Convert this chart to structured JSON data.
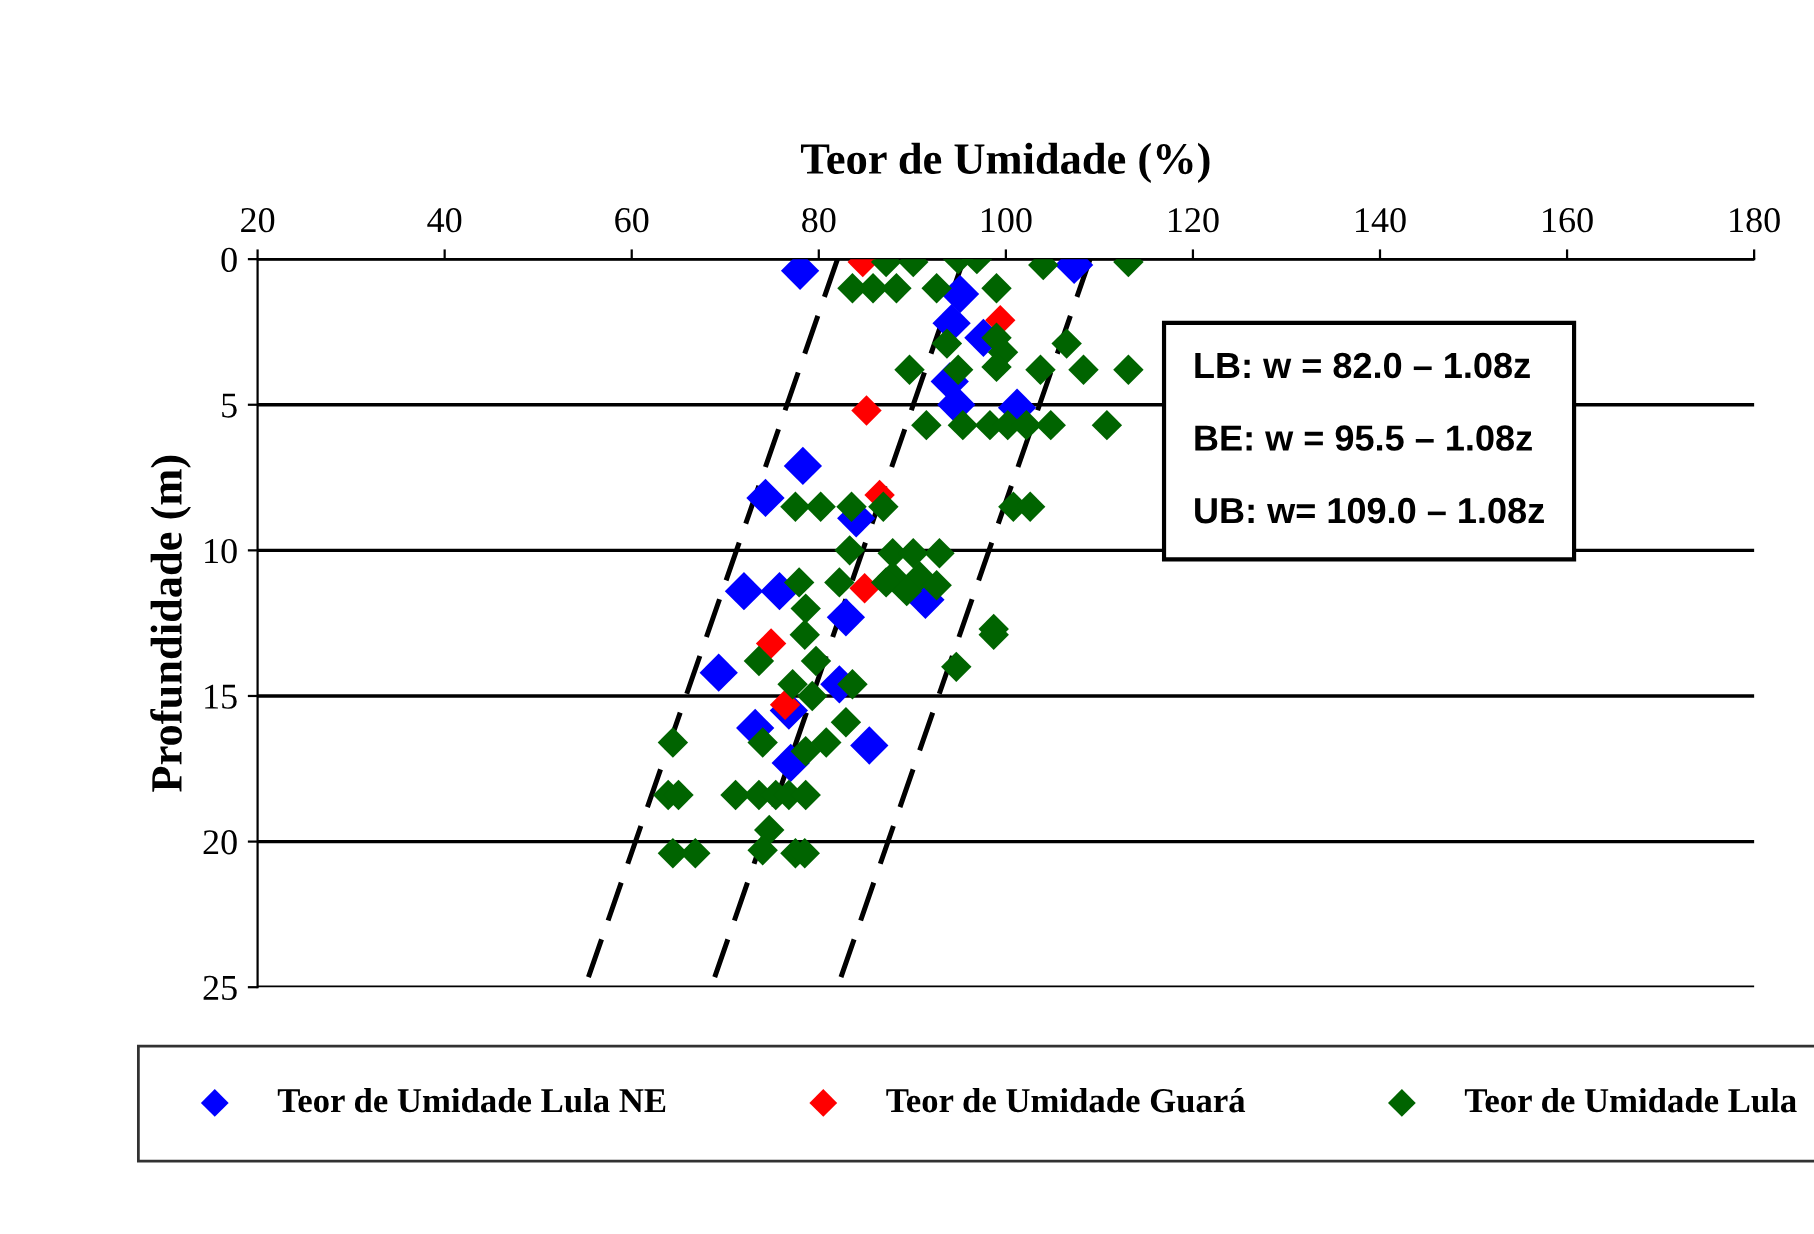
{
  "chart_data": {
    "type": "scatter",
    "xlabel": "Teor de Umidade (%)",
    "ylabel": "Profundidade (m)",
    "xlim": [
      20,
      180
    ],
    "xticks": [
      20,
      40,
      60,
      80,
      100,
      120,
      140,
      160,
      180
    ],
    "ylim": [
      25,
      0
    ],
    "yticks": [
      0,
      5,
      10,
      15,
      20,
      25
    ],
    "grid": "y",
    "legend": "bottom",
    "marker": "diamond",
    "annotations": [
      "LB: w = 82.0 – 1.08z",
      "BE: w = 95.5 – 1.08z",
      "UB: w= 109.0 – 1.08z"
    ],
    "series": [
      {
        "name": "Teor de Umidade Lula NE",
        "color": "#0000ff",
        "x": [
          78.0,
          107.3,
          95.1,
          94.2,
          97.6,
          94.0,
          94.7,
          101.2,
          78.3,
          74.3,
          84.0,
          72.0,
          75.8,
          91.4,
          82.9,
          69.3,
          82.2,
          76.8,
          73.2,
          85.4,
          77.0
        ],
        "values": [
          0.4,
          0.2,
          1.2,
          2.2,
          2.7,
          4.2,
          5.0,
          5.1,
          7.1,
          8.2,
          8.9,
          11.4,
          11.4,
          11.7,
          12.3,
          14.2,
          14.6,
          15.5,
          16.1,
          16.7,
          17.3
        ]
      },
      {
        "name": "Teor de Umidade Guará",
        "color": "#ff0000",
        "x": [
          84.7,
          99.4,
          85.1,
          86.5,
          84.9,
          74.9,
          76.4
        ],
        "values": [
          0.1,
          2.1,
          5.2,
          8.1,
          11.3,
          13.2,
          15.3
        ]
      },
      {
        "name": "Teor de Umidade Lula",
        "color": "#006400",
        "x": [
          87.2,
          90.1,
          94.9,
          96.9,
          104.0,
          113.1,
          83.6,
          85.8,
          88.3,
          92.6,
          99.0,
          93.7,
          99.0,
          99.7,
          106.5,
          89.7,
          94.9,
          99.0,
          103.7,
          108.3,
          113.1,
          91.5,
          95.4,
          98.3,
          100.2,
          102.2,
          104.8,
          110.8,
          77.5,
          80.2,
          83.5,
          86.9,
          100.8,
          102.6,
          83.3,
          87.9,
          90.1,
          92.9,
          87.9,
          90.8,
          77.9,
          82.2,
          87.2,
          92.6,
          78.6,
          89.4,
          98.7,
          78.5,
          98.7,
          73.6,
          79.7,
          77.2,
          83.6,
          94.7,
          79.3,
          82.9,
          64.4,
          74.0,
          80.8,
          78.6,
          63.9,
          65.0,
          71.1,
          73.6,
          75.4,
          76.8,
          78.6,
          74.7,
          64.4,
          66.8,
          74.0,
          77.5,
          78.5
        ],
        "values": [
          0.1,
          0.1,
          0,
          0,
          0.2,
          0.1,
          1.0,
          1.0,
          1.0,
          1.0,
          1.0,
          2.9,
          2.7,
          3.2,
          2.9,
          3.8,
          3.8,
          3.7,
          3.8,
          3.8,
          3.8,
          5.7,
          5.7,
          5.7,
          5.7,
          5.7,
          5.7,
          5.7,
          8.5,
          8.5,
          8.5,
          8.5,
          8.5,
          8.5,
          10.0,
          10.1,
          10.1,
          10.1,
          10.9,
          10.9,
          11.1,
          11.1,
          11.1,
          11.2,
          12.0,
          11.4,
          12.7,
          12.9,
          12.9,
          13.8,
          13.8,
          14.6,
          14.6,
          14.0,
          15.0,
          15.9,
          16.6,
          16.6,
          16.6,
          16.9,
          18.4,
          18.4,
          18.4,
          18.4,
          18.4,
          18.4,
          18.4,
          19.6,
          20.4,
          20.4,
          20.3,
          20.4,
          20.4
        ]
      },
      {
        "type": "line",
        "color": "#000000",
        "line_style": "dashed",
        "marker": "none",
        "x": [
          82.0,
          55.0
        ],
        "values": [
          0,
          25
        ]
      },
      {
        "type": "line",
        "color": "#000000",
        "line_style": "dashed",
        "marker": "none",
        "x": [
          95.5,
          68.5
        ],
        "values": [
          0,
          25
        ]
      },
      {
        "type": "line",
        "color": "#000000",
        "line_style": "dashed",
        "marker": "none",
        "x": [
          109.0,
          82.0
        ],
        "values": [
          0,
          25
        ]
      }
    ]
  }
}
